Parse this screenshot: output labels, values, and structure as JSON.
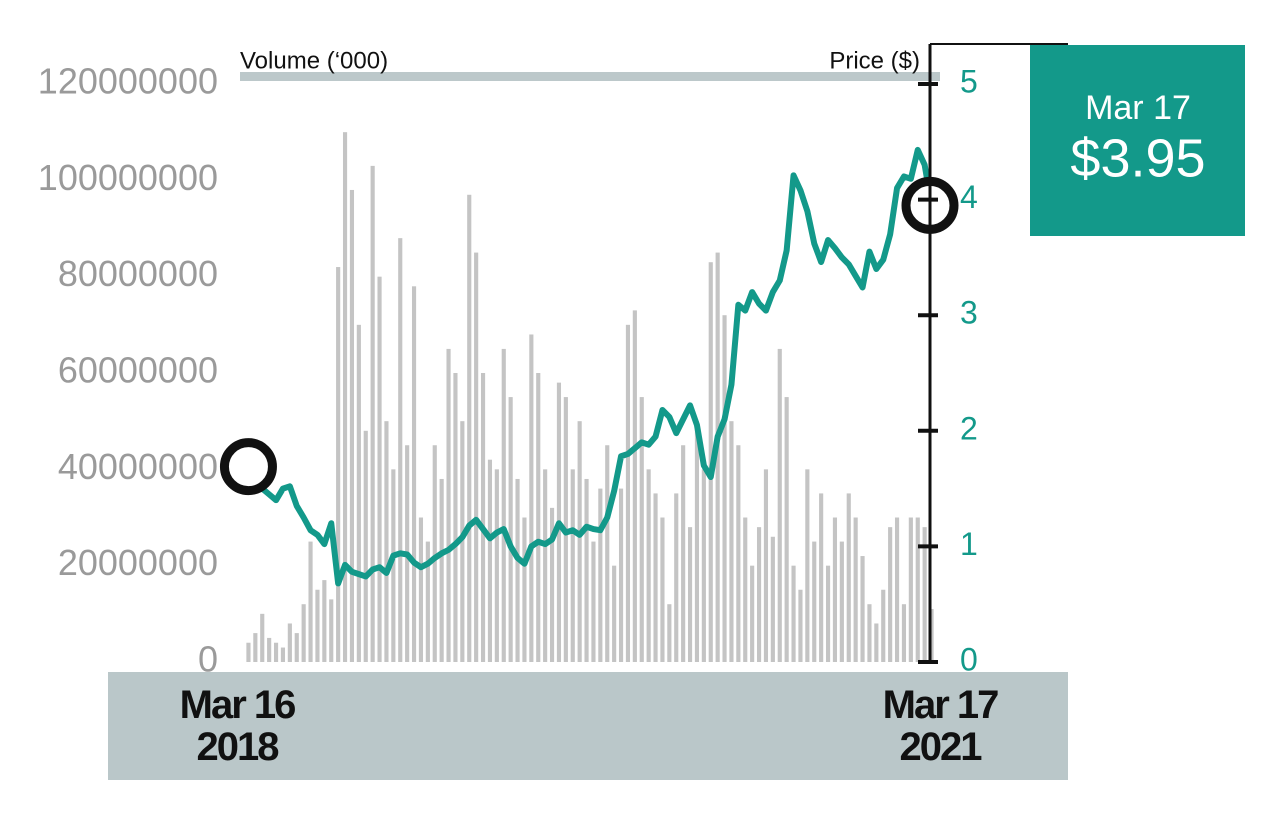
{
  "chart_data": {
    "type": "combo",
    "ylabel": "Volume (‘000)",
    "y2label": "Price ($)",
    "ylim": [
      0,
      120000000
    ],
    "yticks": [
      0,
      20000000,
      40000000,
      60000000,
      80000000,
      100000000,
      120000000
    ],
    "y2lim": [
      0,
      5
    ],
    "y2ticks": [
      0,
      1,
      2,
      3,
      4,
      5
    ],
    "callout": {
      "date": "Mar 17",
      "price": "$3.95"
    },
    "categories": [
      "Mar 16\n2018",
      null,
      null,
      null,
      null,
      null,
      null,
      null,
      null,
      null,
      null,
      null,
      null,
      null,
      null,
      null,
      null,
      null,
      null,
      null,
      null,
      null,
      null,
      null,
      null,
      null,
      null,
      null,
      null,
      null,
      null,
      null,
      null,
      null,
      null,
      null,
      null,
      null,
      null,
      null,
      null,
      null,
      null,
      null,
      null,
      null,
      null,
      null,
      null,
      null,
      null,
      null,
      null,
      null,
      null,
      null,
      null,
      null,
      null,
      null,
      null,
      null,
      null,
      null,
      null,
      null,
      null,
      null,
      null,
      null,
      null,
      null,
      null,
      null,
      null,
      null,
      null,
      null,
      null,
      null,
      null,
      null,
      null,
      null,
      null,
      null,
      null,
      null,
      null,
      null,
      null,
      null,
      null,
      null,
      null,
      null,
      null,
      null,
      null,
      "Mar 17\n2021"
    ],
    "series": [
      {
        "type": "bar",
        "color": "#c4c4c4",
        "values": [
          4000000,
          6000000,
          10000000,
          5000000,
          4000000,
          3000000,
          8000000,
          6000000,
          12000000,
          25000000,
          15000000,
          17000000,
          13000000,
          82000000,
          110000000,
          98000000,
          70000000,
          48000000,
          103000000,
          80000000,
          50000000,
          40000000,
          88000000,
          45000000,
          78000000,
          30000000,
          25000000,
          45000000,
          38000000,
          65000000,
          60000000,
          50000000,
          97000000,
          85000000,
          60000000,
          42000000,
          40000000,
          65000000,
          55000000,
          38000000,
          30000000,
          68000000,
          60000000,
          40000000,
          32000000,
          58000000,
          55000000,
          40000000,
          50000000,
          38000000,
          25000000,
          36000000,
          45000000,
          20000000,
          36000000,
          70000000,
          73000000,
          55000000,
          40000000,
          35000000,
          30000000,
          12000000,
          35000000,
          45000000,
          28000000,
          50000000,
          40000000,
          83000000,
          85000000,
          72000000,
          50000000,
          45000000,
          30000000,
          20000000,
          28000000,
          40000000,
          26000000,
          65000000,
          55000000,
          20000000,
          15000000,
          40000000,
          25000000,
          35000000,
          20000000,
          30000000,
          25000000,
          35000000,
          30000000,
          22000000,
          12000000,
          8000000,
          15000000,
          28000000,
          30000000,
          12000000,
          30000000,
          30000000,
          28000000,
          11000000
        ]
      },
      {
        "type": "line",
        "axis": "y2",
        "color": "#13998a",
        "values": [
          1.69,
          1.6,
          1.5,
          1.45,
          1.4,
          1.5,
          1.52,
          1.35,
          1.25,
          1.14,
          1.1,
          1.02,
          1.2,
          0.68,
          0.84,
          0.78,
          0.76,
          0.74,
          0.8,
          0.82,
          0.77,
          0.92,
          0.94,
          0.93,
          0.86,
          0.82,
          0.85,
          0.9,
          0.94,
          0.97,
          1.02,
          1.08,
          1.18,
          1.23,
          1.15,
          1.07,
          1.12,
          1.15,
          1.0,
          0.9,
          0.85,
          1.0,
          1.04,
          1.02,
          1.06,
          1.2,
          1.12,
          1.14,
          1.1,
          1.17,
          1.15,
          1.14,
          1.25,
          1.48,
          1.78,
          1.8,
          1.85,
          1.9,
          1.88,
          1.95,
          2.18,
          2.12,
          1.98,
          2.1,
          2.22,
          2.05,
          1.7,
          1.6,
          1.95,
          2.1,
          2.4,
          3.09,
          3.04,
          3.2,
          3.1,
          3.04,
          3.2,
          3.3,
          3.56,
          4.21,
          4.08,
          3.9,
          3.62,
          3.46,
          3.65,
          3.58,
          3.5,
          3.44,
          3.34,
          3.24,
          3.55,
          3.4,
          3.48,
          3.7,
          4.1,
          4.2,
          4.18,
          4.43,
          4.3,
          3.95
        ]
      }
    ]
  }
}
